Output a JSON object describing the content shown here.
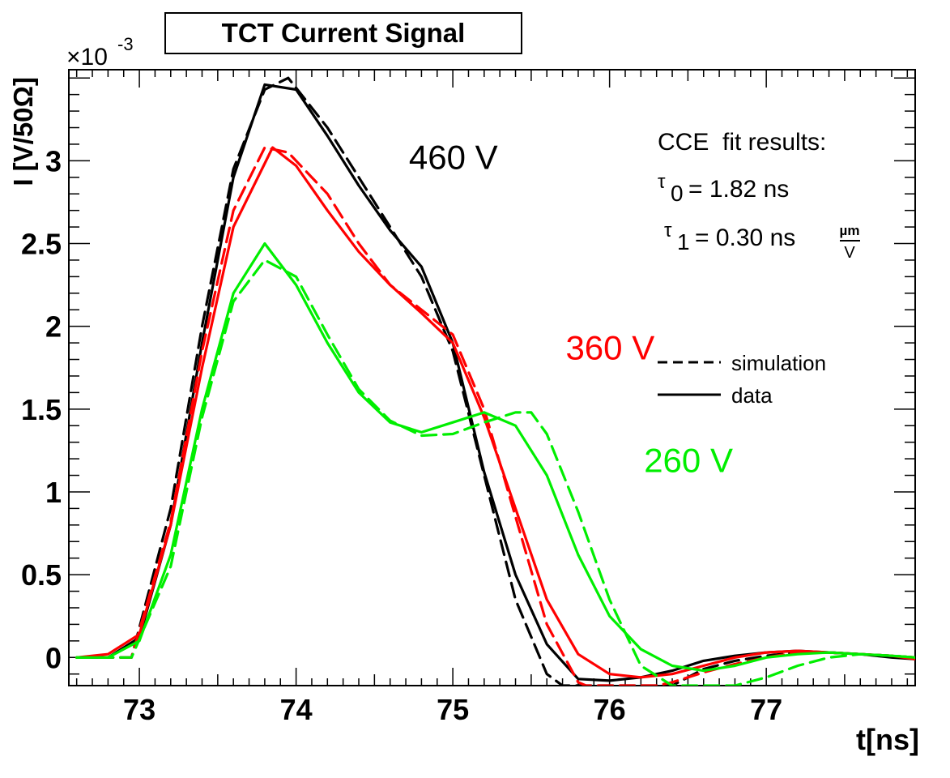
{
  "chart_data": {
    "type": "line",
    "title": "TCT Current Signal",
    "xlabel": "t[ns]",
    "ylabel": "I [V/50Ω]",
    "y_scale_label": "×10",
    "y_scale_exponent": "-3",
    "xlim": [
      72.55,
      77.95
    ],
    "ylim": [
      -0.17,
      3.55
    ],
    "xticks": [
      73,
      74,
      75,
      76,
      77
    ],
    "xtick_labels": [
      "73",
      "74",
      "75",
      "76",
      "77"
    ],
    "yticks": [
      0,
      0.5,
      1,
      1.5,
      2,
      2.5,
      3
    ],
    "ytick_labels": [
      "0",
      "0.5",
      "1",
      "1.5",
      "2",
      "2.5",
      "3"
    ],
    "legend": {
      "placement": "right",
      "entries": [
        {
          "style": "dashed",
          "label": "simulation"
        },
        {
          "style": "solid",
          "label": "data"
        }
      ]
    },
    "annotations": {
      "fit_header": "CCE  fit results:",
      "tau0_symbol": "τ",
      "tau0_sub": "0",
      "tau0_value": "= 1.82 ns",
      "tau1_symbol": "τ",
      "tau1_sub": "1",
      "tau1_value": "= 0.30 ns",
      "tau1_unit_num": "µm",
      "tau1_unit_den": "V"
    },
    "series": [
      {
        "label": "460 V",
        "color": "#000000",
        "style": "solid",
        "x": [
          72.6,
          72.8,
          73.0,
          73.2,
          73.4,
          73.6,
          73.8,
          74.0,
          74.2,
          74.4,
          74.6,
          74.8,
          75.0,
          75.2,
          75.4,
          75.6,
          75.8,
          76.0,
          76.2,
          76.4,
          76.6,
          76.8,
          77.0,
          77.2,
          77.4,
          77.6,
          77.8,
          77.95
        ],
        "y": [
          0.0,
          0.0,
          0.12,
          0.8,
          1.9,
          2.9,
          3.46,
          3.43,
          3.15,
          2.85,
          2.58,
          2.36,
          1.9,
          1.12,
          0.5,
          0.08,
          -0.13,
          -0.14,
          -0.12,
          -0.08,
          -0.02,
          0.01,
          0.03,
          0.04,
          0.03,
          0.02,
          0.0,
          -0.01
        ]
      },
      {
        "label": "460 V",
        "color": "#000000",
        "style": "dashed",
        "x": [
          72.6,
          72.8,
          72.95,
          73.2,
          73.4,
          73.6,
          73.8,
          73.95,
          74.2,
          74.4,
          74.6,
          74.8,
          75.0,
          75.2,
          75.4,
          75.6,
          75.7,
          75.8,
          76.4,
          76.5,
          76.6,
          76.8,
          77.0,
          77.2,
          77.4,
          77.6,
          77.8,
          77.95
        ],
        "y": [
          0.0,
          0.0,
          0.0,
          0.9,
          2.0,
          2.95,
          3.43,
          3.5,
          3.2,
          2.9,
          2.6,
          2.3,
          1.85,
          1.1,
          0.35,
          -0.1,
          -0.17,
          -0.17,
          -0.17,
          -0.12,
          -0.07,
          -0.02,
          0.01,
          0.03,
          0.03,
          0.02,
          0.01,
          0.0
        ]
      },
      {
        "label": "360 V",
        "color": "#ff0000",
        "style": "solid",
        "x": [
          72.6,
          72.8,
          73.0,
          73.2,
          73.4,
          73.6,
          73.85,
          74.0,
          74.2,
          74.4,
          74.6,
          74.8,
          75.0,
          75.2,
          75.4,
          75.6,
          75.8,
          76.0,
          76.2,
          76.4,
          76.6,
          76.8,
          77.0,
          77.2,
          77.4,
          77.6,
          77.8,
          77.95
        ],
        "y": [
          0.0,
          0.02,
          0.14,
          0.8,
          1.75,
          2.6,
          3.08,
          2.97,
          2.7,
          2.45,
          2.25,
          2.08,
          1.9,
          1.45,
          0.9,
          0.35,
          0.02,
          -0.1,
          -0.12,
          -0.1,
          -0.05,
          0.0,
          0.03,
          0.04,
          0.03,
          0.02,
          0.01,
          -0.01
        ]
      },
      {
        "label": "360 V",
        "color": "#ff0000",
        "style": "dashed",
        "x": [
          72.6,
          72.8,
          72.95,
          73.2,
          73.4,
          73.6,
          73.8,
          73.95,
          74.2,
          74.4,
          74.6,
          74.8,
          75.0,
          75.2,
          75.4,
          75.6,
          75.8,
          75.85,
          76.3,
          76.4,
          76.5,
          76.6,
          76.8,
          77.0,
          77.2,
          77.4,
          77.6,
          77.8,
          77.95
        ],
        "y": [
          0.0,
          0.0,
          0.0,
          0.82,
          1.85,
          2.7,
          3.08,
          3.05,
          2.8,
          2.5,
          2.25,
          2.1,
          1.95,
          1.5,
          0.85,
          0.2,
          -0.15,
          -0.17,
          -0.17,
          -0.15,
          -0.12,
          -0.09,
          -0.04,
          0.0,
          0.03,
          0.03,
          0.02,
          0.01,
          0.0
        ]
      },
      {
        "label": "260 V",
        "color": "#00ee00",
        "style": "solid",
        "x": [
          72.6,
          72.8,
          73.0,
          73.2,
          73.4,
          73.6,
          73.8,
          74.0,
          74.2,
          74.4,
          74.6,
          74.8,
          75.0,
          75.2,
          75.4,
          75.6,
          75.8,
          76.0,
          76.2,
          76.4,
          76.6,
          76.8,
          77.0,
          77.2,
          77.4,
          77.6,
          77.8,
          77.95
        ],
        "y": [
          0.0,
          0.0,
          0.1,
          0.62,
          1.5,
          2.2,
          2.5,
          2.25,
          1.9,
          1.6,
          1.42,
          1.36,
          1.42,
          1.48,
          1.4,
          1.1,
          0.62,
          0.25,
          0.05,
          -0.05,
          -0.08,
          -0.05,
          0.0,
          0.02,
          0.03,
          0.02,
          0.01,
          0.0
        ]
      },
      {
        "label": "260 V",
        "color": "#00ee00",
        "style": "dashed",
        "x": [
          72.6,
          72.8,
          72.95,
          73.2,
          73.4,
          73.6,
          73.8,
          74.0,
          74.2,
          74.4,
          74.6,
          74.8,
          75.0,
          75.2,
          75.4,
          75.5,
          75.6,
          75.8,
          76.0,
          76.2,
          76.4,
          76.8,
          77.0,
          77.2,
          77.4,
          77.6,
          77.8,
          77.95
        ],
        "y": [
          0.0,
          0.0,
          0.0,
          0.55,
          1.45,
          2.15,
          2.4,
          2.3,
          1.95,
          1.62,
          1.43,
          1.34,
          1.35,
          1.42,
          1.48,
          1.48,
          1.35,
          0.88,
          0.35,
          -0.05,
          -0.17,
          -0.17,
          -0.12,
          -0.05,
          0.0,
          0.02,
          0.01,
          0.0
        ]
      }
    ],
    "series_labels": [
      {
        "text": "460 V",
        "color": "#000000",
        "x": 74.72,
        "y": 2.95
      },
      {
        "text": "360 V",
        "color": "#ff0000",
        "x": 75.72,
        "y": 1.8
      },
      {
        "text": "260 V",
        "color": "#00ee00",
        "x": 76.22,
        "y": 1.12
      }
    ]
  }
}
